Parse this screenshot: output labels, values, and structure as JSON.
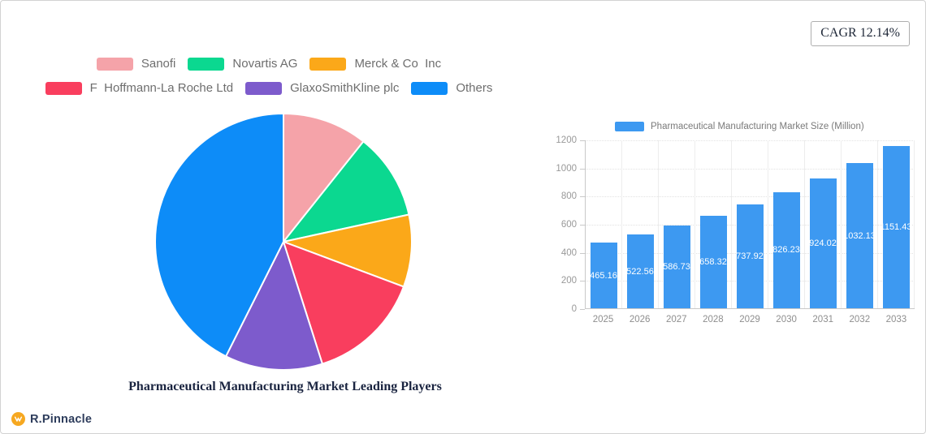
{
  "cagr": {
    "label": "CAGR 12.14%"
  },
  "brand": {
    "name": "R.Pinnacle"
  },
  "chart_data": [
    {
      "type": "pie",
      "title": "Pharmaceutical Manufacturing Market Leading Players",
      "legend_position": "top",
      "slice_border_color": "#ffffff",
      "slices": [
        {
          "label": "Sanofi",
          "value": 10.7,
          "color": "#f5a3a9"
        },
        {
          "label": "Novartis AG",
          "value": 10.9,
          "color": "#0bd890"
        },
        {
          "label": "Merck & Co  Inc",
          "value": 9.1,
          "color": "#fba819"
        },
        {
          "label": "F  Hoffmann-La Roche Ltd",
          "value": 14.4,
          "color": "#f93e5e"
        },
        {
          "label": "GlaxoSmithKline plc",
          "value": 12.3,
          "color": "#7d5bcc"
        },
        {
          "label": "Others",
          "value": 42.6,
          "color": "#0d8cf8"
        }
      ]
    },
    {
      "type": "bar",
      "legend": "Pharmaceutical Manufacturing Market Size (Million)",
      "categories": [
        "2025",
        "2026",
        "2027",
        "2028",
        "2029",
        "2030",
        "2031",
        "2032",
        "2033"
      ],
      "values": [
        465.16,
        522.56,
        586.73,
        658.32,
        737.92,
        826.23,
        924.02,
        1032.13,
        1151.43
      ],
      "value_labels": [
        "465.16",
        "522.56",
        "586.73",
        "658.32",
        "737.92",
        "826.23",
        "924.02",
        "1032.13",
        "1151.43"
      ],
      "bar_color": "#3d99f1",
      "ylim": [
        0,
        1200
      ],
      "yticks": [
        0,
        200,
        400,
        600,
        800,
        1000,
        1200
      ],
      "grid": true,
      "xlabel": "",
      "ylabel": ""
    }
  ]
}
